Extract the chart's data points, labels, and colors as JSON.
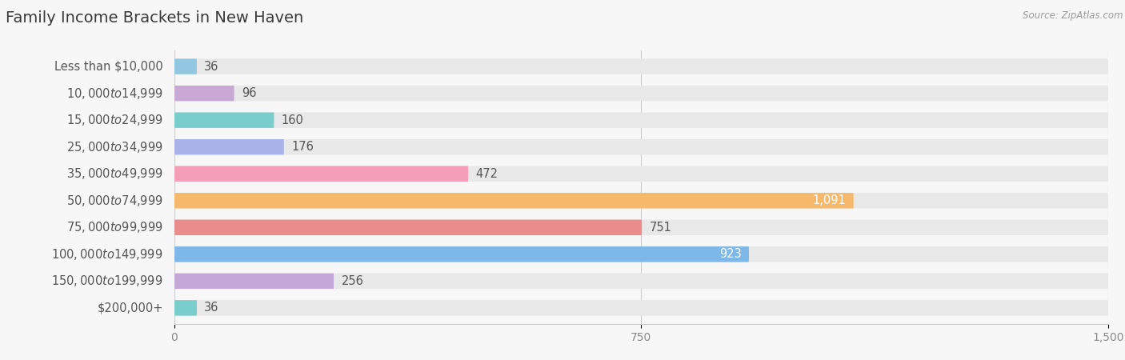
{
  "title": "Family Income Brackets in New Haven",
  "source": "Source: ZipAtlas.com",
  "categories": [
    "Less than $10,000",
    "$10,000 to $14,999",
    "$15,000 to $24,999",
    "$25,000 to $34,999",
    "$35,000 to $49,999",
    "$50,000 to $74,999",
    "$75,000 to $99,999",
    "$100,000 to $149,999",
    "$150,000 to $199,999",
    "$200,000+"
  ],
  "values": [
    36,
    96,
    160,
    176,
    472,
    1091,
    751,
    923,
    256,
    36
  ],
  "bar_colors": [
    "#93C6E0",
    "#C8A9D5",
    "#79CDCA",
    "#A9B3E8",
    "#F49EBA",
    "#F6B96B",
    "#E88C8C",
    "#7DB8E8",
    "#C3A8D8",
    "#79CDCA"
  ],
  "value_inside_color": [
    "#555555",
    "#555555",
    "#555555",
    "#555555",
    "#555555",
    "#FFFFFF",
    "#555555",
    "#FFFFFF",
    "#555555",
    "#555555"
  ],
  "xlim": [
    0,
    1500
  ],
  "xticks": [
    0,
    750,
    1500
  ],
  "background_color": "#F7F7F7",
  "bar_bg_color": "#E8E8E8",
  "title_fontsize": 14,
  "label_fontsize": 10.5,
  "value_fontsize": 10.5,
  "bar_height": 0.58,
  "label_color": "#555555",
  "tick_color": "#888888"
}
